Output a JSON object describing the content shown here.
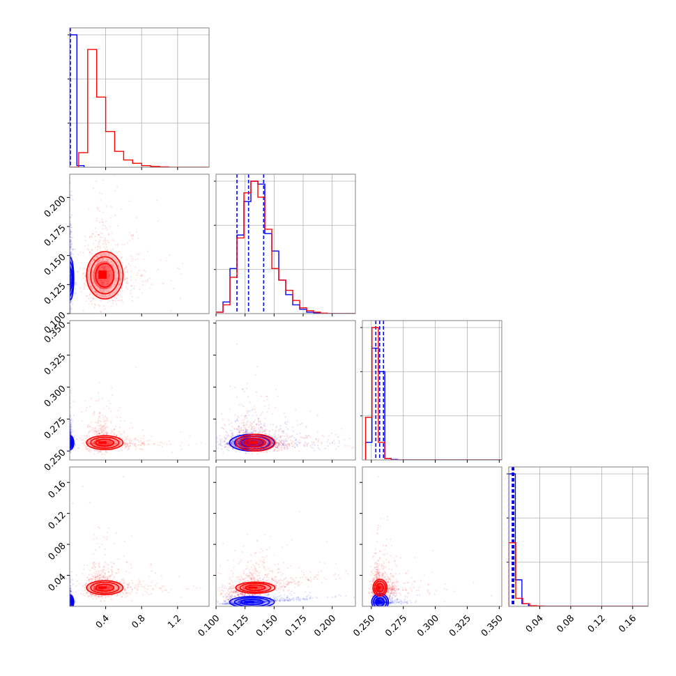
{
  "chart_data": {
    "type": "corner",
    "title": "",
    "parameters": [
      {
        "label": "",
        "range": [
          0.0,
          1.55
        ],
        "ticks": [
          0.4,
          0.8,
          1.2
        ],
        "tick_labels": [
          "0.4",
          "0.8",
          "1.2"
        ]
      },
      {
        "label": "",
        "range": [
          0.1,
          0.22
        ],
        "ticks": [
          0.1,
          0.125,
          0.15,
          0.175,
          0.2
        ],
        "tick_labels": [
          "0.100",
          "0.125",
          "0.150",
          "0.175",
          "0.200"
        ]
      },
      {
        "label": "",
        "range": [
          0.243,
          0.352
        ],
        "ticks": [
          0.25,
          0.275,
          0.3,
          0.325,
          0.35
        ],
        "tick_labels": [
          "0.250",
          "0.275",
          "0.300",
          "0.325",
          "0.350"
        ]
      },
      {
        "label": "",
        "range": [
          0.0,
          0.18
        ],
        "ticks": [
          0.04,
          0.08,
          0.12,
          0.16
        ],
        "tick_labels": [
          "0.04",
          "0.08",
          "0.12",
          "0.16"
        ]
      }
    ],
    "series": [
      {
        "name": "",
        "color": "#0000ff",
        "quantiles": [
          [
            0.004,
            0.006,
            0.008
          ],
          [
            0.118,
            0.128,
            0.141
          ],
          [
            0.2535,
            0.2565,
            0.2595
          ],
          [
            0.0045,
            0.0055,
            0.0065
          ]
        ],
        "histograms": [
          {
            "edges": [
              0.0,
              0.08,
              0.16
            ],
            "counts": [
              1.0,
              0.012
            ]
          },
          {
            "edges": [
              0.1,
              0.106,
              0.112,
              0.118,
              0.124,
              0.13,
              0.136,
              0.142,
              0.148,
              0.154,
              0.16,
              0.166,
              0.172,
              0.178,
              0.184,
              0.19,
              0.22
            ],
            "counts": [
              0.01,
              0.08,
              0.31,
              0.54,
              0.77,
              0.91,
              0.89,
              0.55,
              0.43,
              0.23,
              0.13,
              0.06,
              0.03,
              0.01,
              0.005,
              0.0
            ]
          },
          {
            "edges": [
              0.2455,
              0.2505,
              0.2555,
              0.2605,
              0.2655,
              0.2705,
              0.352
            ],
            "counts": [
              0.12,
              0.76,
              0.6,
              0.01,
              0.003,
              0.0
            ]
          },
          {
            "edges": [
              0.0,
              0.0085,
              0.017,
              0.0255,
              0.034,
              0.18
            ],
            "counts": [
              1.0,
              0.2,
              0.02,
              0.004,
              0.0
            ]
          }
        ],
        "samples": [
          [
            0.005,
            0.13,
            0.2565,
            0.0055
          ]
        ]
      },
      {
        "name": "",
        "color": "#ff0000",
        "quantiles": [],
        "histograms": [
          {
            "edges": [
              0.0,
              0.1,
              0.2,
              0.3,
              0.4,
              0.5,
              0.6,
              0.7,
              0.8,
              0.9,
              1.0,
              1.1,
              1.55
            ],
            "counts": [
              0.0,
              0.11,
              0.89,
              0.53,
              0.27,
              0.12,
              0.055,
              0.03,
              0.012,
              0.006,
              0.003,
              0.0
            ]
          },
          {
            "edges": [
              0.1,
              0.106,
              0.112,
              0.118,
              0.124,
              0.13,
              0.136,
              0.142,
              0.148,
              0.154,
              0.16,
              0.166,
              0.172,
              0.178,
              0.184,
              0.19,
              0.196,
              0.22
            ],
            "counts": [
              0.01,
              0.06,
              0.25,
              0.52,
              0.83,
              0.91,
              0.8,
              0.58,
              0.31,
              0.23,
              0.16,
              0.09,
              0.04,
              0.02,
              0.01,
              0.003,
              0.0
            ]
          },
          {
            "edges": [
              0.2455,
              0.2505,
              0.2555,
              0.2605,
              0.2655,
              0.352
            ],
            "counts": [
              0.29,
              0.9,
              0.12,
              0.01,
              0.0
            ]
          },
          {
            "edges": [
              0.0,
              0.009,
              0.018,
              0.027,
              0.036,
              0.045,
              0.18
            ],
            "counts": [
              0.48,
              0.06,
              0.02,
              0.005,
              0.002,
              0.0
            ]
          }
        ],
        "samples": [
          [
            0.38,
            0.133,
            0.2565,
            0.024
          ]
        ]
      }
    ],
    "grid": true,
    "legend": "none"
  }
}
